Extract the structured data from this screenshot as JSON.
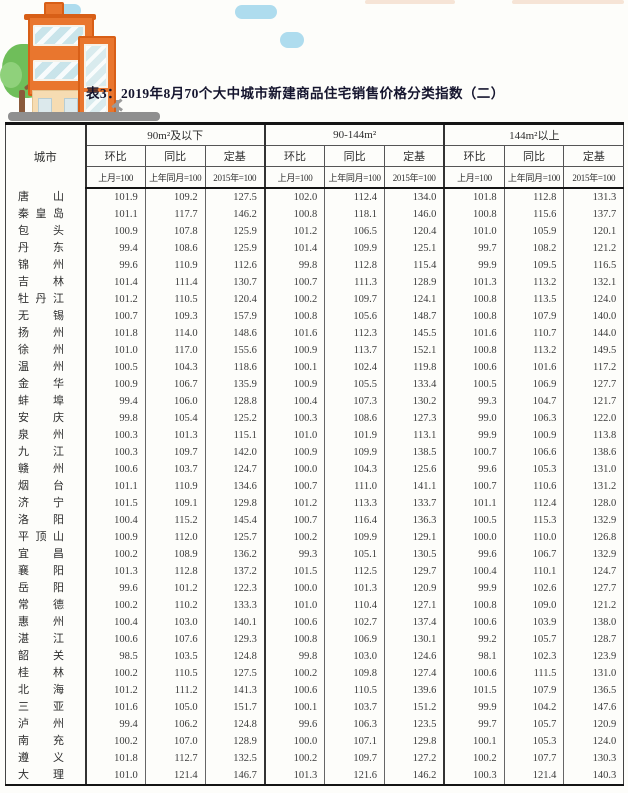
{
  "title": "表3：2019年8月70个大中城市新建商品住宅销售价格分类指数（二）",
  "illustration": {
    "building_color": "#e9762e",
    "building_trim_color": "#d85f17",
    "base_color": "#f6dcb2",
    "tree_color": "#6fbe5a",
    "cloud_color": "#aedcee",
    "ground_color": "#8f8f8f"
  },
  "table": {
    "city_header": "城市",
    "groups": [
      {
        "label": "90m²及以下"
      },
      {
        "label": "90-144m²"
      },
      {
        "label": "144m²以上"
      }
    ],
    "sub_headers": [
      "环比",
      "同比",
      "定基"
    ],
    "base_headers": [
      "上月=100",
      "上年同月=100",
      "2015年=100"
    ],
    "rows": [
      {
        "city": "唐山",
        "values": [
          "101.9",
          "109.2",
          "127.5",
          "102.0",
          "112.4",
          "134.0",
          "101.8",
          "112.8",
          "131.3"
        ]
      },
      {
        "city": "秦皇岛",
        "values": [
          "101.1",
          "117.7",
          "146.2",
          "100.8",
          "118.1",
          "146.0",
          "100.8",
          "115.6",
          "137.7"
        ]
      },
      {
        "city": "包头",
        "values": [
          "100.9",
          "107.8",
          "125.9",
          "101.2",
          "106.5",
          "120.4",
          "101.0",
          "105.9",
          "120.1"
        ]
      },
      {
        "city": "丹东",
        "values": [
          "99.4",
          "108.6",
          "125.9",
          "101.4",
          "109.9",
          "125.1",
          "99.7",
          "108.2",
          "121.2"
        ]
      },
      {
        "city": "锦州",
        "values": [
          "99.6",
          "110.9",
          "112.6",
          "99.8",
          "112.8",
          "115.4",
          "99.9",
          "109.5",
          "116.5"
        ]
      },
      {
        "city": "吉林",
        "values": [
          "101.4",
          "111.4",
          "130.7",
          "100.7",
          "111.3",
          "128.9",
          "101.3",
          "113.2",
          "132.1"
        ]
      },
      {
        "city": "牡丹江",
        "values": [
          "101.2",
          "110.5",
          "120.4",
          "100.2",
          "109.7",
          "124.1",
          "100.8",
          "113.5",
          "124.0"
        ]
      },
      {
        "city": "无锡",
        "values": [
          "100.7",
          "109.3",
          "157.9",
          "100.8",
          "105.6",
          "148.7",
          "100.8",
          "107.9",
          "140.0"
        ]
      },
      {
        "city": "扬州",
        "values": [
          "101.8",
          "114.0",
          "148.6",
          "101.6",
          "112.3",
          "145.5",
          "101.6",
          "110.7",
          "144.0"
        ]
      },
      {
        "city": "徐州",
        "values": [
          "101.0",
          "117.0",
          "155.6",
          "100.9",
          "113.7",
          "152.1",
          "100.8",
          "113.2",
          "149.5"
        ]
      },
      {
        "city": "温州",
        "values": [
          "100.5",
          "104.3",
          "118.6",
          "100.1",
          "102.4",
          "119.8",
          "100.6",
          "101.6",
          "117.2"
        ]
      },
      {
        "city": "金华",
        "values": [
          "100.9",
          "106.7",
          "135.9",
          "100.9",
          "105.5",
          "133.4",
          "100.5",
          "106.9",
          "127.7"
        ]
      },
      {
        "city": "蚌埠",
        "values": [
          "99.4",
          "106.0",
          "128.8",
          "100.4",
          "107.3",
          "130.2",
          "99.3",
          "104.7",
          "121.7"
        ]
      },
      {
        "city": "安庆",
        "values": [
          "99.8",
          "105.4",
          "125.2",
          "100.3",
          "108.6",
          "127.3",
          "99.0",
          "106.3",
          "122.0"
        ]
      },
      {
        "city": "泉州",
        "values": [
          "100.3",
          "101.3",
          "115.1",
          "101.0",
          "101.9",
          "113.1",
          "99.9",
          "100.9",
          "113.8"
        ]
      },
      {
        "city": "九江",
        "values": [
          "100.3",
          "109.7",
          "142.0",
          "100.9",
          "109.9",
          "138.5",
          "100.7",
          "106.6",
          "138.6"
        ]
      },
      {
        "city": "赣州",
        "values": [
          "100.6",
          "103.7",
          "124.7",
          "100.0",
          "104.3",
          "125.6",
          "99.6",
          "105.3",
          "131.0"
        ]
      },
      {
        "city": "烟台",
        "values": [
          "101.1",
          "110.9",
          "134.6",
          "100.7",
          "111.0",
          "141.1",
          "100.7",
          "110.6",
          "131.2"
        ]
      },
      {
        "city": "济宁",
        "values": [
          "101.5",
          "109.1",
          "129.8",
          "101.2",
          "113.3",
          "133.7",
          "101.1",
          "112.4",
          "128.0"
        ]
      },
      {
        "city": "洛阳",
        "values": [
          "100.4",
          "115.2",
          "145.4",
          "100.7",
          "116.4",
          "136.3",
          "100.5",
          "115.3",
          "132.9"
        ]
      },
      {
        "city": "平顶山",
        "values": [
          "100.9",
          "112.0",
          "125.7",
          "100.2",
          "109.9",
          "129.1",
          "100.0",
          "110.0",
          "126.8"
        ]
      },
      {
        "city": "宜昌",
        "values": [
          "100.2",
          "108.9",
          "136.2",
          "99.3",
          "105.1",
          "130.5",
          "99.6",
          "106.7",
          "132.9"
        ]
      },
      {
        "city": "襄阳",
        "values": [
          "101.3",
          "112.8",
          "137.2",
          "101.5",
          "112.5",
          "129.7",
          "100.4",
          "110.1",
          "124.7"
        ]
      },
      {
        "city": "岳阳",
        "values": [
          "99.6",
          "101.2",
          "122.3",
          "100.0",
          "101.3",
          "120.9",
          "99.9",
          "102.6",
          "127.7"
        ]
      },
      {
        "city": "常德",
        "values": [
          "100.2",
          "110.2",
          "133.3",
          "101.0",
          "110.4",
          "127.1",
          "100.8",
          "109.0",
          "121.2"
        ]
      },
      {
        "city": "惠州",
        "values": [
          "100.4",
          "103.0",
          "140.1",
          "100.6",
          "102.7",
          "137.4",
          "100.6",
          "103.9",
          "138.0"
        ]
      },
      {
        "city": "湛江",
        "values": [
          "100.6",
          "107.6",
          "129.3",
          "100.8",
          "106.9",
          "130.1",
          "99.2",
          "105.7",
          "128.7"
        ]
      },
      {
        "city": "韶关",
        "values": [
          "98.5",
          "103.5",
          "124.8",
          "99.8",
          "103.0",
          "124.6",
          "98.1",
          "102.3",
          "123.9"
        ]
      },
      {
        "city": "桂林",
        "values": [
          "100.2",
          "110.5",
          "127.5",
          "100.2",
          "109.8",
          "127.4",
          "100.6",
          "111.5",
          "131.0"
        ]
      },
      {
        "city": "北海",
        "values": [
          "101.2",
          "111.2",
          "141.3",
          "100.6",
          "110.5",
          "139.6",
          "101.5",
          "107.9",
          "136.5"
        ]
      },
      {
        "city": "三亚",
        "values": [
          "101.6",
          "105.0",
          "151.7",
          "100.1",
          "103.7",
          "151.2",
          "99.9",
          "104.2",
          "147.6"
        ]
      },
      {
        "city": "泸州",
        "values": [
          "99.4",
          "106.2",
          "124.8",
          "99.6",
          "106.3",
          "123.5",
          "99.7",
          "105.7",
          "120.9"
        ]
      },
      {
        "city": "南充",
        "values": [
          "100.2",
          "107.0",
          "128.9",
          "100.0",
          "107.1",
          "129.8",
          "100.1",
          "105.3",
          "124.0"
        ]
      },
      {
        "city": "遵义",
        "values": [
          "101.8",
          "112.7",
          "132.5",
          "100.2",
          "109.7",
          "127.2",
          "100.2",
          "107.7",
          "130.3"
        ]
      },
      {
        "city": "大理",
        "values": [
          "101.0",
          "121.4",
          "146.7",
          "101.3",
          "121.6",
          "146.2",
          "100.3",
          "121.4",
          "140.3"
        ]
      }
    ]
  }
}
